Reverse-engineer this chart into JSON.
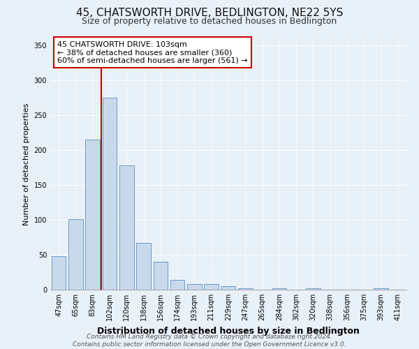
{
  "title": "45, CHATSWORTH DRIVE, BEDLINGTON, NE22 5YS",
  "subtitle": "Size of property relative to detached houses in Bedlington",
  "xlabel": "Distribution of detached houses by size in Bedlington",
  "ylabel": "Number of detached properties",
  "bar_labels": [
    "47sqm",
    "65sqm",
    "83sqm",
    "102sqm",
    "120sqm",
    "138sqm",
    "156sqm",
    "174sqm",
    "193sqm",
    "211sqm",
    "229sqm",
    "247sqm",
    "265sqm",
    "284sqm",
    "302sqm",
    "320sqm",
    "338sqm",
    "356sqm",
    "375sqm",
    "393sqm",
    "411sqm"
  ],
  "bar_values": [
    48,
    101,
    215,
    275,
    178,
    67,
    40,
    14,
    8,
    8,
    5,
    2,
    0,
    2,
    0,
    2,
    0,
    0,
    0,
    2,
    0
  ],
  "bar_color": "#c9d9ec",
  "bar_edge_color": "#5a8fc0",
  "vline_color": "#cc0000",
  "vline_x_index": 3,
  "ylim": [
    0,
    360
  ],
  "yticks": [
    0,
    50,
    100,
    150,
    200,
    250,
    300,
    350
  ],
  "annotation_title": "45 CHATSWORTH DRIVE: 103sqm",
  "annotation_line1": "← 38% of detached houses are smaller (360)",
  "annotation_line2": "60% of semi-detached houses are larger (561) →",
  "annotation_box_color": "#ffffff",
  "annotation_border_color": "#cc0000",
  "footer_line1": "Contains HM Land Registry data © Crown copyright and database right 2024.",
  "footer_line2": "Contains public sector information licensed under the Open Government Licence v3.0.",
  "background_color": "#e8f0f8",
  "plot_background": "#e8f0f8",
  "title_fontsize": 11,
  "subtitle_fontsize": 9,
  "xlabel_fontsize": 9,
  "ylabel_fontsize": 8,
  "tick_fontsize": 7,
  "annotation_fontsize": 8,
  "footer_fontsize": 6.5
}
